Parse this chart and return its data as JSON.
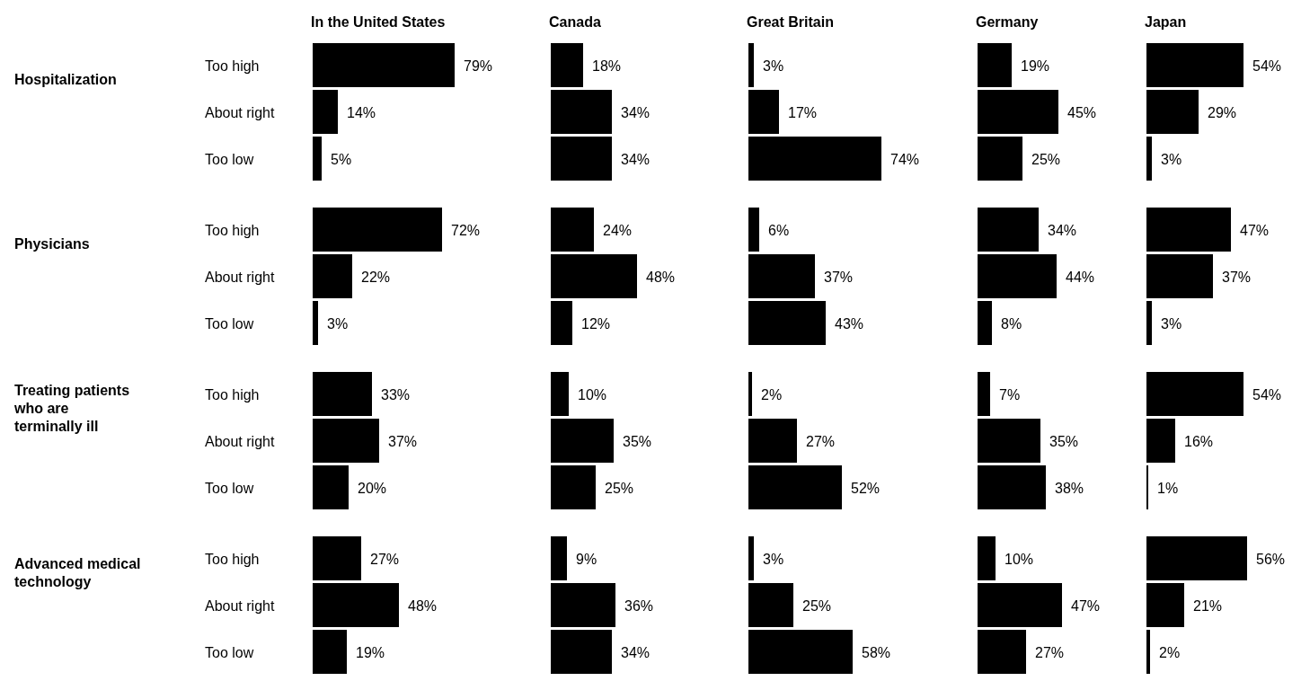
{
  "chart_data": [
    {
      "type": "bar",
      "orientation": "horizontal",
      "title": "In the United States",
      "color": "#000000",
      "categories": [
        "Too high",
        "About right",
        "Too low",
        "Too high",
        "About right",
        "Too low",
        "Too high",
        "About right",
        "Too low",
        "Too high",
        "About right",
        "Too low"
      ],
      "values": [
        79,
        14,
        5,
        72,
        22,
        3,
        33,
        37,
        20,
        27,
        48,
        19
      ],
      "value_labels": [
        "79%",
        "14%",
        "5%",
        "72%",
        "22%",
        "3%",
        "33%",
        "37%",
        "20%",
        "27%",
        "48%",
        "19%"
      ],
      "annotations": [
        "Hospitalization",
        "Physicians",
        "Treating patients who are terminally ill",
        "Advanced medical technology"
      ]
    },
    {
      "type": "bar",
      "orientation": "horizontal",
      "title": "Canada",
      "color": "#000000",
      "categories": [
        null,
        null,
        null,
        null,
        null,
        null,
        null,
        null,
        null,
        null,
        null,
        null
      ],
      "values": [
        18,
        34,
        34,
        24,
        48,
        12,
        10,
        35,
        25,
        9,
        36,
        34
      ],
      "value_labels": [
        "18%",
        "34%",
        "34%",
        "24%",
        "48%",
        "12%",
        "10%",
        "35%",
        "25%",
        "9%",
        "36%",
        "34%"
      ]
    },
    {
      "type": "bar",
      "orientation": "horizontal",
      "title": "Great Britain",
      "color": "#000000",
      "categories": [
        null,
        null,
        null,
        null,
        null,
        null,
        null,
        null,
        null,
        null,
        null,
        null
      ],
      "values": [
        3,
        17,
        74,
        6,
        37,
        43,
        2,
        27,
        52,
        3,
        25,
        58
      ],
      "value_labels": [
        "3%",
        "17%",
        "74%",
        "6%",
        "37%",
        "43%",
        "2%",
        "27%",
        "52%",
        "3%",
        "25%",
        "58%"
      ]
    },
    {
      "type": "bar",
      "orientation": "horizontal",
      "title": "Germany",
      "color": "#000000",
      "categories": [
        null,
        null,
        null,
        null,
        null,
        null,
        null,
        null,
        null,
        null,
        null,
        null
      ],
      "values": [
        19,
        45,
        25,
        34,
        44,
        8,
        7,
        35,
        38,
        10,
        47,
        27
      ],
      "value_labels": [
        "19%",
        "45%",
        "25%",
        "34%",
        "44%",
        "8%",
        "7%",
        "35%",
        "38%",
        "10%",
        "47%",
        "27%"
      ]
    },
    {
      "type": "bar",
      "orientation": "horizontal",
      "title": "Japan",
      "color": "#000000",
      "categories": [
        null,
        null,
        null,
        null,
        null,
        null,
        null,
        null,
        null,
        null,
        null,
        null
      ],
      "values": [
        54,
        29,
        3,
        47,
        37,
        3,
        54,
        16,
        1,
        56,
        21,
        2
      ],
      "value_labels": [
        "54%",
        "29%",
        "3%",
        "47%",
        "37%",
        "3%",
        "54%",
        "16%",
        "1%",
        "56%",
        "21%",
        "2%"
      ]
    }
  ]
}
